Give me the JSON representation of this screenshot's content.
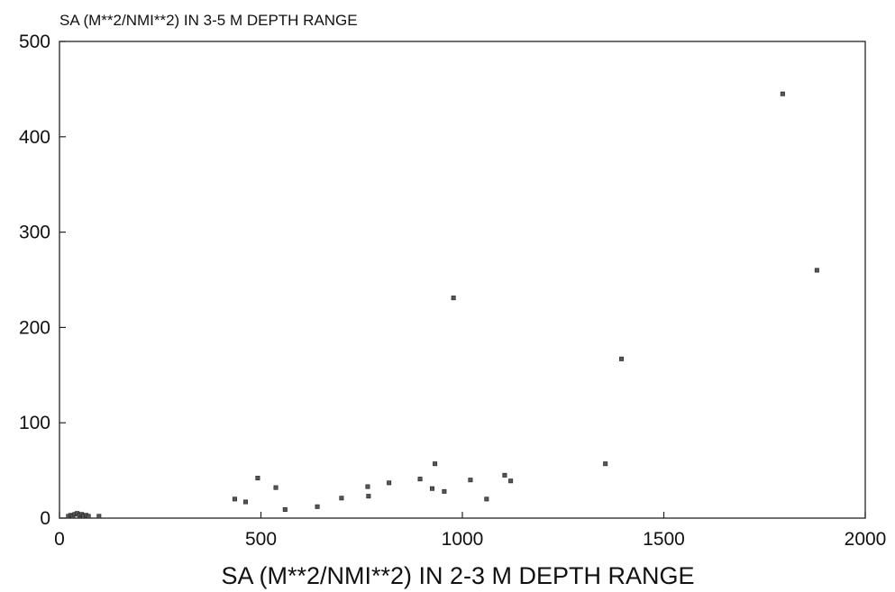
{
  "chart_data": {
    "type": "scatter",
    "title": "",
    "ylabel": "SA (M**2/NMI**2) IN 3-5 M DEPTH RANGE",
    "xlabel": "SA (M**2/NMI**2) IN 2-3 M DEPTH RANGE",
    "xlim": [
      0,
      2000
    ],
    "ylim": [
      0,
      500
    ],
    "xticks": [
      "0",
      "500",
      "1000",
      "1500",
      "2000"
    ],
    "yticks": [
      "0",
      "100",
      "200",
      "300",
      "400",
      "500"
    ],
    "grid": false,
    "points": [
      {
        "x": 22,
        "y": 2
      },
      {
        "x": 28,
        "y": 3
      },
      {
        "x": 33,
        "y": 2
      },
      {
        "x": 38,
        "y": 4
      },
      {
        "x": 44,
        "y": 5
      },
      {
        "x": 50,
        "y": 3
      },
      {
        "x": 55,
        "y": 4
      },
      {
        "x": 60,
        "y": 2
      },
      {
        "x": 66,
        "y": 3
      },
      {
        "x": 72,
        "y": 2
      },
      {
        "x": 98,
        "y": 2
      },
      {
        "x": 435,
        "y": 20
      },
      {
        "x": 462,
        "y": 17
      },
      {
        "x": 492,
        "y": 42
      },
      {
        "x": 537,
        "y": 32
      },
      {
        "x": 560,
        "y": 9
      },
      {
        "x": 640,
        "y": 12
      },
      {
        "x": 700,
        "y": 21
      },
      {
        "x": 765,
        "y": 33
      },
      {
        "x": 767,
        "y": 23
      },
      {
        "x": 818,
        "y": 37
      },
      {
        "x": 895,
        "y": 41
      },
      {
        "x": 925,
        "y": 31
      },
      {
        "x": 932,
        "y": 57
      },
      {
        "x": 955,
        "y": 28
      },
      {
        "x": 978,
        "y": 231
      },
      {
        "x": 1020,
        "y": 40
      },
      {
        "x": 1060,
        "y": 20
      },
      {
        "x": 1105,
        "y": 45
      },
      {
        "x": 1120,
        "y": 39
      },
      {
        "x": 1355,
        "y": 57
      },
      {
        "x": 1395,
        "y": 167
      },
      {
        "x": 1795,
        "y": 445
      },
      {
        "x": 1880,
        "y": 260
      }
    ]
  }
}
